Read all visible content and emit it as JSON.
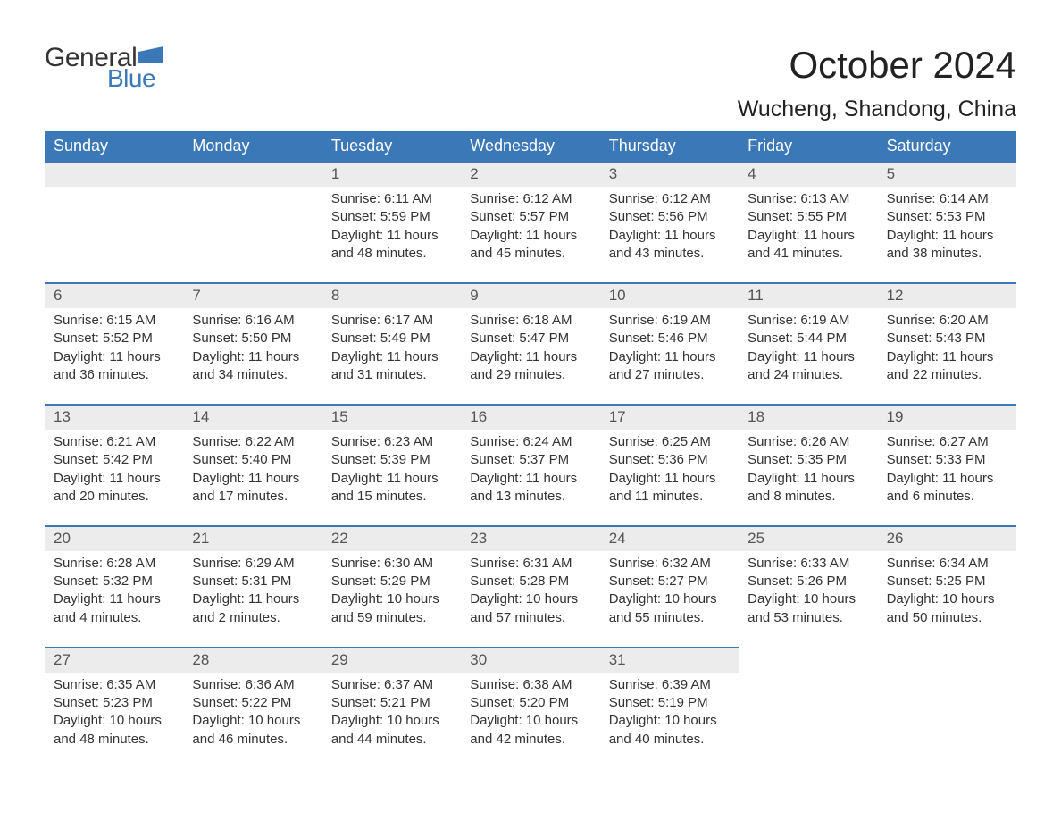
{
  "logo": {
    "word1": "General",
    "word2": "Blue",
    "flag_color": "#3b78b8"
  },
  "title": "October 2024",
  "location": "Wucheng, Shandong, China",
  "colors": {
    "header_bg": "#3b78b8",
    "header_text": "#ffffff",
    "daynum_bg": "#ececec",
    "daynum_border": "#3b78b8",
    "text": "#333333",
    "page_bg": "#ffffff"
  },
  "day_names": [
    "Sunday",
    "Monday",
    "Tuesday",
    "Wednesday",
    "Thursday",
    "Friday",
    "Saturday"
  ],
  "leading_blanks": 2,
  "days": [
    {
      "n": "1",
      "sunrise": "Sunrise: 6:11 AM",
      "sunset": "Sunset: 5:59 PM",
      "daylight1": "Daylight: 11 hours",
      "daylight2": "and 48 minutes."
    },
    {
      "n": "2",
      "sunrise": "Sunrise: 6:12 AM",
      "sunset": "Sunset: 5:57 PM",
      "daylight1": "Daylight: 11 hours",
      "daylight2": "and 45 minutes."
    },
    {
      "n": "3",
      "sunrise": "Sunrise: 6:12 AM",
      "sunset": "Sunset: 5:56 PM",
      "daylight1": "Daylight: 11 hours",
      "daylight2": "and 43 minutes."
    },
    {
      "n": "4",
      "sunrise": "Sunrise: 6:13 AM",
      "sunset": "Sunset: 5:55 PM",
      "daylight1": "Daylight: 11 hours",
      "daylight2": "and 41 minutes."
    },
    {
      "n": "5",
      "sunrise": "Sunrise: 6:14 AM",
      "sunset": "Sunset: 5:53 PM",
      "daylight1": "Daylight: 11 hours",
      "daylight2": "and 38 minutes."
    },
    {
      "n": "6",
      "sunrise": "Sunrise: 6:15 AM",
      "sunset": "Sunset: 5:52 PM",
      "daylight1": "Daylight: 11 hours",
      "daylight2": "and 36 minutes."
    },
    {
      "n": "7",
      "sunrise": "Sunrise: 6:16 AM",
      "sunset": "Sunset: 5:50 PM",
      "daylight1": "Daylight: 11 hours",
      "daylight2": "and 34 minutes."
    },
    {
      "n": "8",
      "sunrise": "Sunrise: 6:17 AM",
      "sunset": "Sunset: 5:49 PM",
      "daylight1": "Daylight: 11 hours",
      "daylight2": "and 31 minutes."
    },
    {
      "n": "9",
      "sunrise": "Sunrise: 6:18 AM",
      "sunset": "Sunset: 5:47 PM",
      "daylight1": "Daylight: 11 hours",
      "daylight2": "and 29 minutes."
    },
    {
      "n": "10",
      "sunrise": "Sunrise: 6:19 AM",
      "sunset": "Sunset: 5:46 PM",
      "daylight1": "Daylight: 11 hours",
      "daylight2": "and 27 minutes."
    },
    {
      "n": "11",
      "sunrise": "Sunrise: 6:19 AM",
      "sunset": "Sunset: 5:44 PM",
      "daylight1": "Daylight: 11 hours",
      "daylight2": "and 24 minutes."
    },
    {
      "n": "12",
      "sunrise": "Sunrise: 6:20 AM",
      "sunset": "Sunset: 5:43 PM",
      "daylight1": "Daylight: 11 hours",
      "daylight2": "and 22 minutes."
    },
    {
      "n": "13",
      "sunrise": "Sunrise: 6:21 AM",
      "sunset": "Sunset: 5:42 PM",
      "daylight1": "Daylight: 11 hours",
      "daylight2": "and 20 minutes."
    },
    {
      "n": "14",
      "sunrise": "Sunrise: 6:22 AM",
      "sunset": "Sunset: 5:40 PM",
      "daylight1": "Daylight: 11 hours",
      "daylight2": "and 17 minutes."
    },
    {
      "n": "15",
      "sunrise": "Sunrise: 6:23 AM",
      "sunset": "Sunset: 5:39 PM",
      "daylight1": "Daylight: 11 hours",
      "daylight2": "and 15 minutes."
    },
    {
      "n": "16",
      "sunrise": "Sunrise: 6:24 AM",
      "sunset": "Sunset: 5:37 PM",
      "daylight1": "Daylight: 11 hours",
      "daylight2": "and 13 minutes."
    },
    {
      "n": "17",
      "sunrise": "Sunrise: 6:25 AM",
      "sunset": "Sunset: 5:36 PM",
      "daylight1": "Daylight: 11 hours",
      "daylight2": "and 11 minutes."
    },
    {
      "n": "18",
      "sunrise": "Sunrise: 6:26 AM",
      "sunset": "Sunset: 5:35 PM",
      "daylight1": "Daylight: 11 hours",
      "daylight2": "and 8 minutes."
    },
    {
      "n": "19",
      "sunrise": "Sunrise: 6:27 AM",
      "sunset": "Sunset: 5:33 PM",
      "daylight1": "Daylight: 11 hours",
      "daylight2": "and 6 minutes."
    },
    {
      "n": "20",
      "sunrise": "Sunrise: 6:28 AM",
      "sunset": "Sunset: 5:32 PM",
      "daylight1": "Daylight: 11 hours",
      "daylight2": "and 4 minutes."
    },
    {
      "n": "21",
      "sunrise": "Sunrise: 6:29 AM",
      "sunset": "Sunset: 5:31 PM",
      "daylight1": "Daylight: 11 hours",
      "daylight2": "and 2 minutes."
    },
    {
      "n": "22",
      "sunrise": "Sunrise: 6:30 AM",
      "sunset": "Sunset: 5:29 PM",
      "daylight1": "Daylight: 10 hours",
      "daylight2": "and 59 minutes."
    },
    {
      "n": "23",
      "sunrise": "Sunrise: 6:31 AM",
      "sunset": "Sunset: 5:28 PM",
      "daylight1": "Daylight: 10 hours",
      "daylight2": "and 57 minutes."
    },
    {
      "n": "24",
      "sunrise": "Sunrise: 6:32 AM",
      "sunset": "Sunset: 5:27 PM",
      "daylight1": "Daylight: 10 hours",
      "daylight2": "and 55 minutes."
    },
    {
      "n": "25",
      "sunrise": "Sunrise: 6:33 AM",
      "sunset": "Sunset: 5:26 PM",
      "daylight1": "Daylight: 10 hours",
      "daylight2": "and 53 minutes."
    },
    {
      "n": "26",
      "sunrise": "Sunrise: 6:34 AM",
      "sunset": "Sunset: 5:25 PM",
      "daylight1": "Daylight: 10 hours",
      "daylight2": "and 50 minutes."
    },
    {
      "n": "27",
      "sunrise": "Sunrise: 6:35 AM",
      "sunset": "Sunset: 5:23 PM",
      "daylight1": "Daylight: 10 hours",
      "daylight2": "and 48 minutes."
    },
    {
      "n": "28",
      "sunrise": "Sunrise: 6:36 AM",
      "sunset": "Sunset: 5:22 PM",
      "daylight1": "Daylight: 10 hours",
      "daylight2": "and 46 minutes."
    },
    {
      "n": "29",
      "sunrise": "Sunrise: 6:37 AM",
      "sunset": "Sunset: 5:21 PM",
      "daylight1": "Daylight: 10 hours",
      "daylight2": "and 44 minutes."
    },
    {
      "n": "30",
      "sunrise": "Sunrise: 6:38 AM",
      "sunset": "Sunset: 5:20 PM",
      "daylight1": "Daylight: 10 hours",
      "daylight2": "and 42 minutes."
    },
    {
      "n": "31",
      "sunrise": "Sunrise: 6:39 AM",
      "sunset": "Sunset: 5:19 PM",
      "daylight1": "Daylight: 10 hours",
      "daylight2": "and 40 minutes."
    }
  ]
}
